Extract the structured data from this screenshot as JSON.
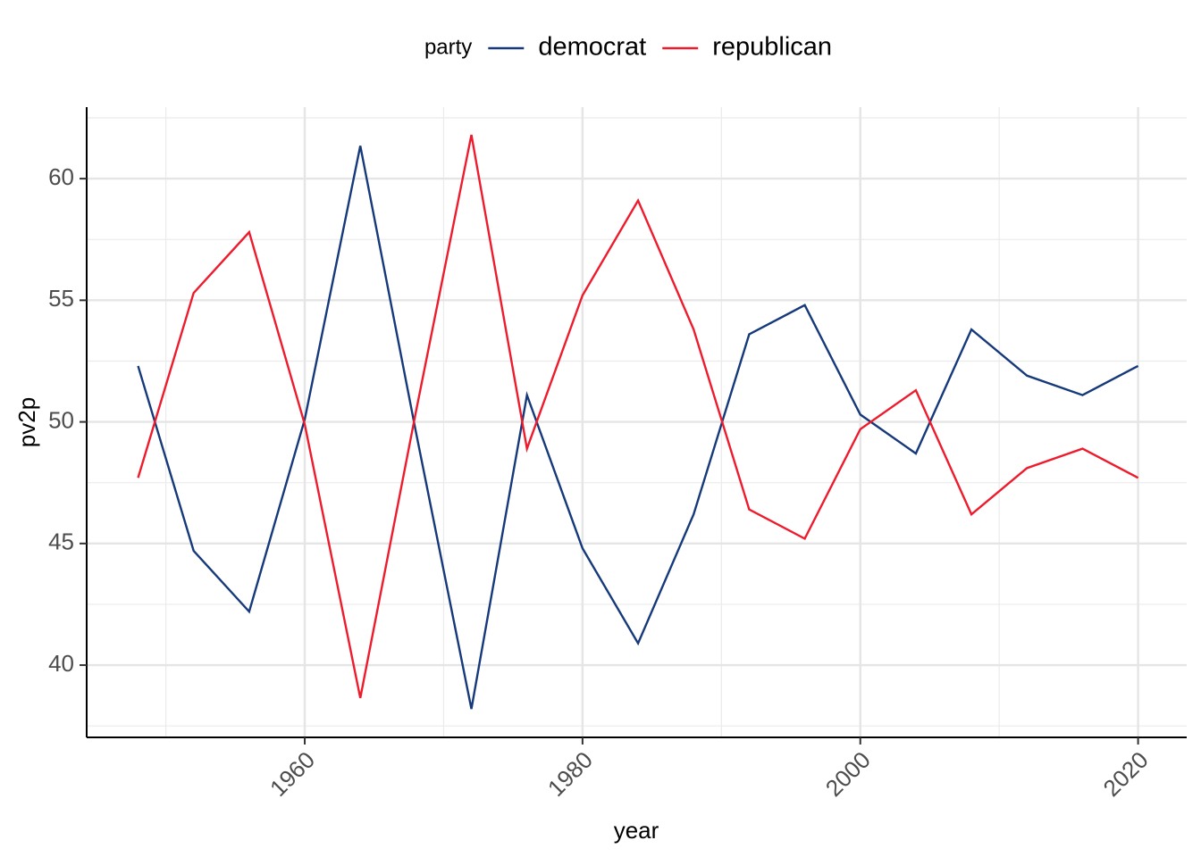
{
  "chart_data": {
    "type": "line",
    "x_label": "year",
    "y_label": "pv2p",
    "legend_title": "party",
    "legend_position": "top",
    "x": [
      1948,
      1952,
      1956,
      1960,
      1964,
      1968,
      1972,
      1976,
      1980,
      1984,
      1988,
      1992,
      1996,
      2000,
      2004,
      2008,
      2012,
      2016,
      2020
    ],
    "series": [
      {
        "name": "democrat",
        "color": "#15397a",
        "values": [
          52.3,
          44.7,
          42.2,
          50.1,
          61.35,
          49.6,
          38.2,
          51.1,
          44.8,
          40.9,
          46.2,
          53.6,
          54.8,
          50.3,
          48.7,
          53.8,
          51.9,
          51.1,
          52.3
        ]
      },
      {
        "name": "republican",
        "color": "#ee1b2d",
        "values": [
          47.7,
          55.3,
          57.8,
          49.9,
          38.65,
          50.4,
          61.8,
          48.9,
          55.2,
          59.1,
          53.8,
          46.4,
          45.2,
          49.7,
          51.3,
          46.2,
          48.1,
          48.9,
          47.7
        ]
      }
    ],
    "xlim": [
      1944.3,
      2023.5
    ],
    "xticks": [
      1960,
      1980,
      2000,
      2020
    ],
    "x_minor_ticks": [
      1950,
      1970,
      1990,
      2010
    ],
    "ylim": [
      37.03,
      62.94
    ],
    "yticks": [
      40,
      45,
      50,
      55,
      60
    ],
    "y_minor_ticks": [
      37.5,
      42.5,
      47.5,
      52.5,
      57.5,
      62.5
    ],
    "grid": true
  }
}
